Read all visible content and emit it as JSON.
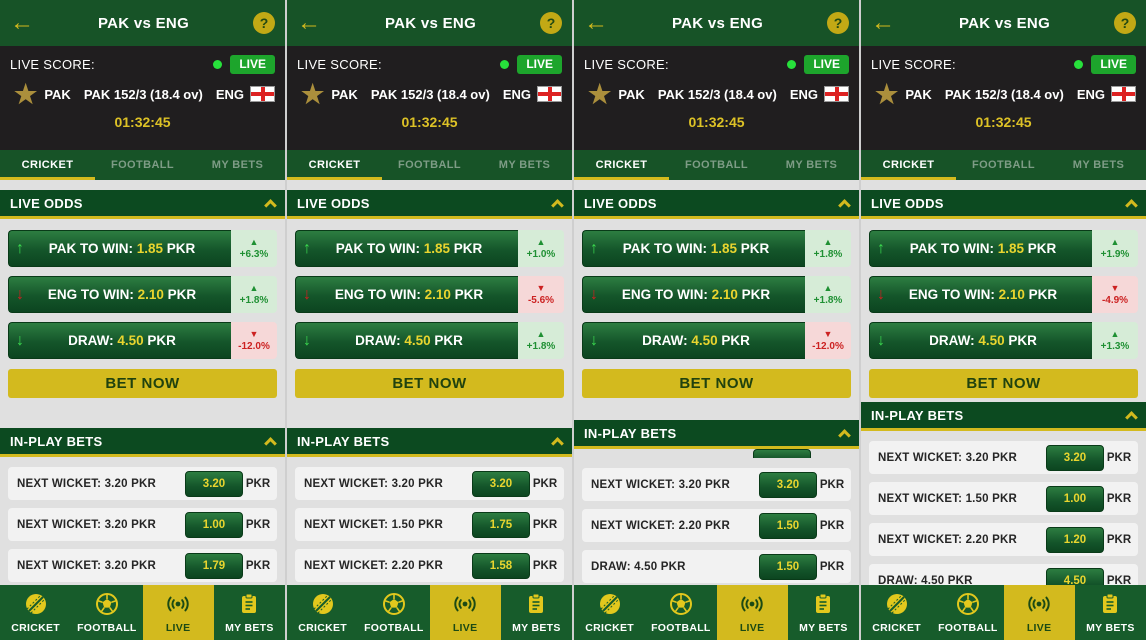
{
  "shared": {
    "header": {
      "title": "PAK vs ENG",
      "back_icon": "left-arrow-icon",
      "help_label": "?"
    },
    "score": {
      "live_label": "LIVE SCORE:",
      "live_badge": "LIVE",
      "home_team": "PAK",
      "score_text": "PAK 152/3 (18.4 ov)",
      "away_team": "ENG",
      "home_icon": "gold-star-icon",
      "away_icon": "england-flag-icon",
      "timer": "01:32:45"
    },
    "tabs": [
      {
        "label": "CRICKET",
        "active": true
      },
      {
        "label": "FOOTBALL",
        "active": false
      },
      {
        "label": "MY BETS",
        "active": false
      }
    ],
    "live_odds_title": "LIVE ODDS",
    "bet_now_label": "BET NOW",
    "inplay_title": "IN-PLAY BETS",
    "bottom_nav": [
      {
        "label": "CRICKET",
        "icon": "cricket-ball-icon",
        "active": false
      },
      {
        "label": "FOOTBALL",
        "icon": "football-icon",
        "active": false
      },
      {
        "label": "LIVE",
        "icon": "live-broadcast-icon",
        "active": true
      },
      {
        "label": "MY BETS",
        "icon": "my-bets-clipboard-icon",
        "active": false
      }
    ],
    "colors": {
      "header_green": "#175327",
      "section_green": "#0c4a20",
      "accent_yellow": "#d3ba1e",
      "live_badge_green": "#1da52c",
      "odds_value_yellow": "#e9d52f",
      "positive_green": "#1f9033",
      "negative_red": "#cc2222",
      "score_bar_black": "#201e1f"
    }
  },
  "panels": [
    {
      "odds": [
        {
          "trend_dir": "up",
          "trend_color": "green",
          "label": "PAK TO WIN:",
          "value": "1.85",
          "currency": "PKR",
          "change": "+6.3%",
          "change_dir": "up"
        },
        {
          "trend_dir": "down",
          "trend_color": "red",
          "label": "ENG TO WIN:",
          "value": "2.10",
          "currency": "PKR",
          "change": "+1.8%",
          "change_dir": "up"
        },
        {
          "trend_dir": "down",
          "trend_color": "green",
          "label": "DRAW:",
          "value": "4.50",
          "currency": "PKR",
          "change": "-12.0%",
          "change_dir": "down"
        }
      ],
      "inplay": {
        "partial_row_top": false,
        "rows": [
          {
            "label": "NEXT WICKET: 3.20 PKR",
            "value": "3.20",
            "currency": "PKR"
          },
          {
            "label": "NEXT WICKET: 3.20 PKR",
            "value": "1.00",
            "currency": "PKR"
          },
          {
            "label": "NEXT WICKET: 3.20 PKR",
            "value": "1.79",
            "currency": "PKR"
          }
        ]
      }
    },
    {
      "odds": [
        {
          "trend_dir": "up",
          "trend_color": "green",
          "label": "PAK TO WIN:",
          "value": "1.85",
          "currency": "PKR",
          "change": "+1.0%",
          "change_dir": "up"
        },
        {
          "trend_dir": "down",
          "trend_color": "red",
          "label": "ENG TO WIN:",
          "value": "2.10",
          "currency": "PKR",
          "change": "-5.6%",
          "change_dir": "down"
        },
        {
          "trend_dir": "down",
          "trend_color": "green",
          "label": "DRAW:",
          "value": "4.50",
          "currency": "PKR",
          "change": "+1.8%",
          "change_dir": "up"
        }
      ],
      "inplay": {
        "partial_row_top": false,
        "rows": [
          {
            "label": "NEXT WICKET: 3.20 PKR",
            "value": "3.20",
            "currency": "PKR"
          },
          {
            "label": "NEXT WICKET: 1.50 PKR",
            "value": "1.75",
            "currency": "PKR"
          },
          {
            "label": "NEXT WICKET: 2.20 PKR",
            "value": "1.58",
            "currency": "PKR"
          }
        ]
      }
    },
    {
      "odds": [
        {
          "trend_dir": "up",
          "trend_color": "green",
          "label": "PAK TO WIN:",
          "value": "1.85",
          "currency": "PKR",
          "change": "+1.8%",
          "change_dir": "up"
        },
        {
          "trend_dir": "down",
          "trend_color": "red",
          "label": "ENG TO WIN:",
          "value": "2.10",
          "currency": "PKR",
          "change": "+1.8%",
          "change_dir": "up"
        },
        {
          "trend_dir": "down",
          "trend_color": "green",
          "label": "DRAW:",
          "value": "4.50",
          "currency": "PKR",
          "change": "-12.0%",
          "change_dir": "down"
        }
      ],
      "inplay": {
        "partial_row_top": true,
        "rows": [
          {
            "label": "NEXT WICKET: 3.20 PKR",
            "value": "3.20",
            "currency": "PKR"
          },
          {
            "label": "NEXT WICKET: 2.20 PKR",
            "value": "1.50",
            "currency": "PKR"
          },
          {
            "label": "DRAW: 4.50 PKR",
            "value": "1.50",
            "currency": "PKR"
          }
        ]
      }
    },
    {
      "odds": [
        {
          "trend_dir": "up",
          "trend_color": "green",
          "label": "PAK TO WIN:",
          "value": "1.85",
          "currency": "PKR",
          "change": "+1.9%",
          "change_dir": "up"
        },
        {
          "trend_dir": "down",
          "trend_color": "red",
          "label": "ENG TO WIN:",
          "value": "2.10",
          "currency": "PKR",
          "change": "-4.9%",
          "change_dir": "down"
        },
        {
          "trend_dir": "down",
          "trend_color": "green",
          "label": "DRAW:",
          "value": "4.50",
          "currency": "PKR",
          "change": "+1.3%",
          "change_dir": "up"
        }
      ],
      "inplay": {
        "partial_row_top": false,
        "rows": [
          {
            "label": "NEXT WICKET: 3.20 PKR",
            "value": "3.20",
            "currency": "PKR"
          },
          {
            "label": "NEXT WICKET: 1.50 PKR",
            "value": "1.00",
            "currency": "PKR"
          },
          {
            "label": "NEXT WICKET: 2.20 PKR",
            "value": "1.20",
            "currency": "PKR"
          },
          {
            "label": "DRAW: 4.50 PKR",
            "value": "4.50",
            "currency": "PKR"
          }
        ]
      }
    }
  ]
}
